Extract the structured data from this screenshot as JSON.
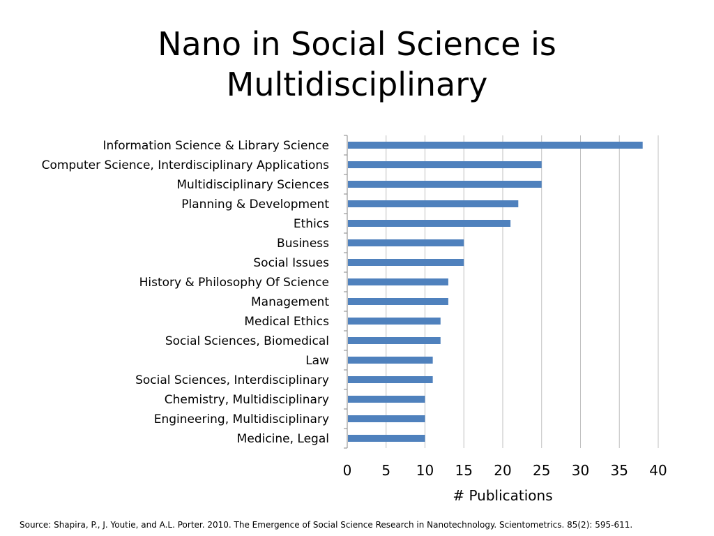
{
  "slide": {
    "title_line1": "Nano in Social Science is",
    "title_line2": "Multidisciplinary",
    "source": "Source:  Shapira, P., J. Youtie, and A.L. Porter. 2010. The Emergence of Social Science Research in Nanotechnology. Scientometrics. 85(2): 595-611."
  },
  "colors": {
    "bar": "#4F81BD",
    "gridline": "#BFBFBF",
    "axis": "#868686"
  },
  "chart_data": {
    "type": "bar",
    "orientation": "horizontal",
    "categories": [
      "Information Science & Library Science",
      "Computer Science, Interdisciplinary Applications",
      "Multidisciplinary Sciences",
      "Planning & Development",
      "Ethics",
      "Business",
      "Social Issues",
      "History & Philosophy Of Science",
      "Management",
      "Medical Ethics",
      "Social Sciences, Biomedical",
      "Law",
      "Social Sciences, Interdisciplinary",
      "Chemistry, Multidisciplinary",
      "Engineering, Multidisciplinary",
      "Medicine, Legal"
    ],
    "values": [
      38,
      25,
      25,
      22,
      21,
      15,
      15,
      13,
      13,
      12,
      12,
      11,
      11,
      10,
      10,
      10
    ],
    "title": "",
    "xlabel": "# Publications",
    "ylabel": "",
    "xlim": [
      0,
      40
    ],
    "xticks": [
      0,
      5,
      10,
      15,
      20,
      25,
      30,
      35,
      40
    ],
    "grid": true,
    "legend": "none"
  }
}
